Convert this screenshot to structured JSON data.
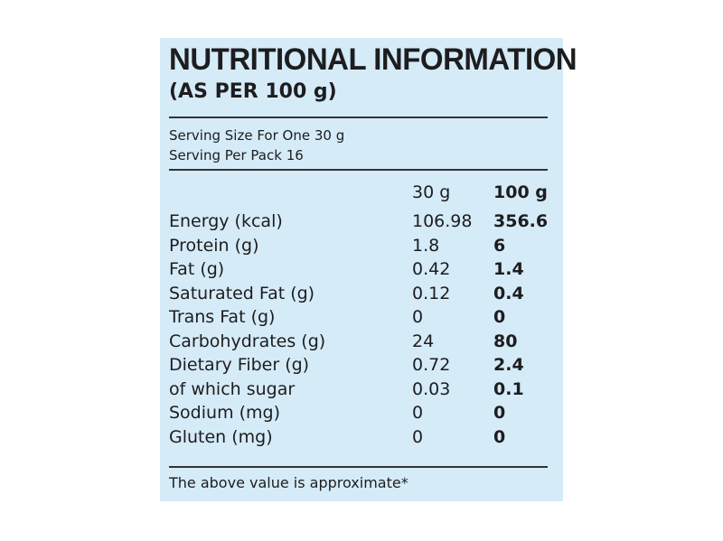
{
  "label": {
    "title": "NUTRITIONAL INFORMATION",
    "subtitle": "(AS PER 100 g)",
    "serving_size": "Serving Size For One 30 g",
    "serving_per_pack": "Serving Per Pack 16",
    "columns": {
      "per_serving": "30 g",
      "per_100g": "100 g"
    },
    "rows": [
      {
        "name": "Energy (kcal)",
        "per_serving": "106.98",
        "per_100g": "356.6"
      },
      {
        "name": "Protein (g)",
        "per_serving": "1.8",
        "per_100g": "6"
      },
      {
        "name": "Fat (g)",
        "per_serving": "0.42",
        "per_100g": "1.4"
      },
      {
        "name": "Saturated Fat (g)",
        "per_serving": "0.12",
        "per_100g": "0.4"
      },
      {
        "name": "Trans Fat (g)",
        "per_serving": "0",
        "per_100g": "0"
      },
      {
        "name": "Carbohydrates (g)",
        "per_serving": "24",
        "per_100g": "80"
      },
      {
        "name": "Dietary Fiber (g)",
        "per_serving": "0.72",
        "per_100g": "2.4"
      },
      {
        "name": "of which sugar",
        "per_serving": "0.03",
        "per_100g": "0.1"
      },
      {
        "name": "Sodium (mg)",
        "per_serving": "0",
        "per_100g": "0"
      },
      {
        "name": "Gluten (mg)",
        "per_serving": "0",
        "per_100g": "0"
      }
    ],
    "footnote": "The above value is approximate*"
  },
  "colors": {
    "panel_background": "#d5ebf8",
    "text": "#1d1d1f",
    "rule": "#333333"
  }
}
